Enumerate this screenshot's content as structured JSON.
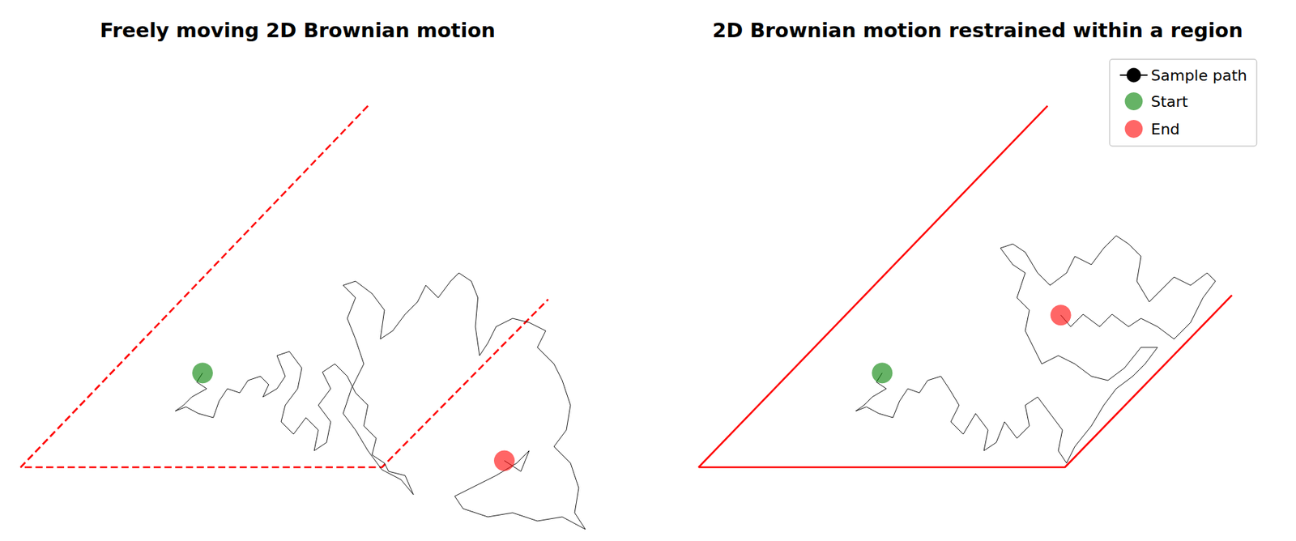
{
  "chart_data": [
    {
      "type": "line",
      "title": "Freely moving 2D Brownian motion",
      "xlim": [
        -15,
        700
      ],
      "ylim": [
        -85,
        445
      ],
      "tick_labels": false,
      "grid": false,
      "series": [
        {
          "type": "line",
          "color": "red",
          "line_style": "dashed",
          "x": [
            420,
            0,
            437,
            638
          ],
          "values": [
            437,
            0,
            0,
            203
          ]
        },
        {
          "name": "Sample path",
          "type": "line",
          "color": "black",
          "x": [
            220,
            213,
            225,
            207,
            197,
            187,
            200,
            215,
            233,
            240,
            250,
            265,
            275,
            290,
            300,
            293,
            310,
            320,
            310,
            325,
            340,
            335,
            320,
            315,
            330,
            345,
            360,
            355,
            370,
            375,
            360,
            375,
            365,
            380,
            395,
            405,
            420,
            415,
            430,
            425,
            440,
            445,
            465,
            475,
            460,
            437,
            420,
            405,
            390,
            400,
            415,
            405,
            395,
            405,
            390,
            405,
            425,
            440,
            435,
            450,
            465,
            480,
            490,
            505,
            520,
            530,
            545,
            553,
            550,
            555,
            565,
            575,
            595,
            615,
            635,
            625,
            645,
            655,
            665,
            660,
            645,
            665,
            675,
            670,
            683,
            655,
            625,
            595,
            565,
            535,
            525,
            555,
            575,
            600,
            615,
            605,
            585
          ],
          "values": [
            114,
            103,
            95,
            85,
            75,
            68,
            73,
            65,
            60,
            80,
            95,
            90,
            105,
            110,
            100,
            85,
            95,
            110,
            135,
            140,
            120,
            95,
            75,
            55,
            40,
            60,
            45,
            20,
            30,
            55,
            75,
            95,
            115,
            125,
            110,
            90,
            75,
            50,
            35,
            15,
            5,
            -5,
            -10,
            -33,
            -15,
            -3,
            20,
            45,
            65,
            95,
            125,
            155,
            180,
            205,
            220,
            225,
            210,
            190,
            155,
            165,
            185,
            200,
            220,
            205,
            225,
            235,
            225,
            205,
            170,
            135,
            150,
            170,
            180,
            175,
            165,
            145,
            125,
            105,
            75,
            45,
            25,
            5,
            -25,
            -55,
            -75,
            -60,
            -65,
            -55,
            -60,
            -50,
            -35,
            -20,
            -10,
            5,
            20,
            -5,
            8
          ]
        },
        {
          "name": "Start",
          "type": "scatter",
          "marker": "circle",
          "color": "green",
          "x": [
            220
          ],
          "values": [
            114
          ]
        },
        {
          "name": "End",
          "type": "scatter",
          "marker": "circle",
          "color": "red",
          "x": [
            585
          ],
          "values": [
            8
          ]
        }
      ]
    },
    {
      "type": "line",
      "title": "2D Brownian motion restrained within a region",
      "xlim": [
        -15,
        700
      ],
      "ylim": [
        -85,
        445
      ],
      "tick_labels": false,
      "grid": false,
      "legend": "upper right",
      "series": [
        {
          "type": "line",
          "color": "red",
          "line_style": "solid",
          "x": [
            422,
            0,
            443,
            645
          ],
          "values": [
            437,
            0,
            0,
            208
          ]
        },
        {
          "name": "Sample path",
          "type": "line",
          "color": "black",
          "x": [
            222,
            215,
            227,
            210,
            200,
            190,
            203,
            218,
            235,
            243,
            253,
            267,
            277,
            293,
            303,
            315,
            305,
            320,
            335,
            350,
            345,
            360,
            370,
            385,
            400,
            395,
            410,
            425,
            440,
            435,
            445,
            455,
            475,
            490,
            505,
            525,
            540,
            555,
            535,
            515,
            495,
            475,
            455,
            435,
            415,
            405,
            395,
            400,
            385,
            395,
            380,
            365,
            380,
            395,
            410,
            425,
            445,
            455,
            475,
            490,
            505,
            520,
            535,
            530,
            545,
            560,
            575,
            595,
            615,
            625,
            610,
            595,
            575,
            555,
            535,
            520,
            500,
            485,
            465,
            450,
            438
          ],
          "values": [
            114,
            103,
            95,
            85,
            75,
            68,
            73,
            65,
            60,
            80,
            95,
            90,
            105,
            110,
            95,
            75,
            55,
            40,
            65,
            45,
            20,
            30,
            55,
            35,
            50,
            75,
            85,
            65,
            45,
            20,
            5,
            25,
            50,
            75,
            95,
            110,
            125,
            145,
            145,
            120,
            105,
            110,
            125,
            135,
            125,
            145,
            165,
            190,
            205,
            235,
            245,
            265,
            270,
            260,
            235,
            220,
            235,
            255,
            245,
            265,
            280,
            270,
            255,
            225,
            200,
            215,
            230,
            220,
            235,
            225,
            205,
            175,
            155,
            170,
            180,
            170,
            185,
            170,
            185,
            170,
            184
          ]
        },
        {
          "name": "Start",
          "type": "scatter",
          "marker": "circle",
          "color": "green",
          "x": [
            222
          ],
          "values": [
            114
          ]
        },
        {
          "name": "End",
          "type": "scatter",
          "marker": "circle",
          "color": "red",
          "x": [
            438
          ],
          "values": [
            184
          ]
        }
      ]
    }
  ]
}
